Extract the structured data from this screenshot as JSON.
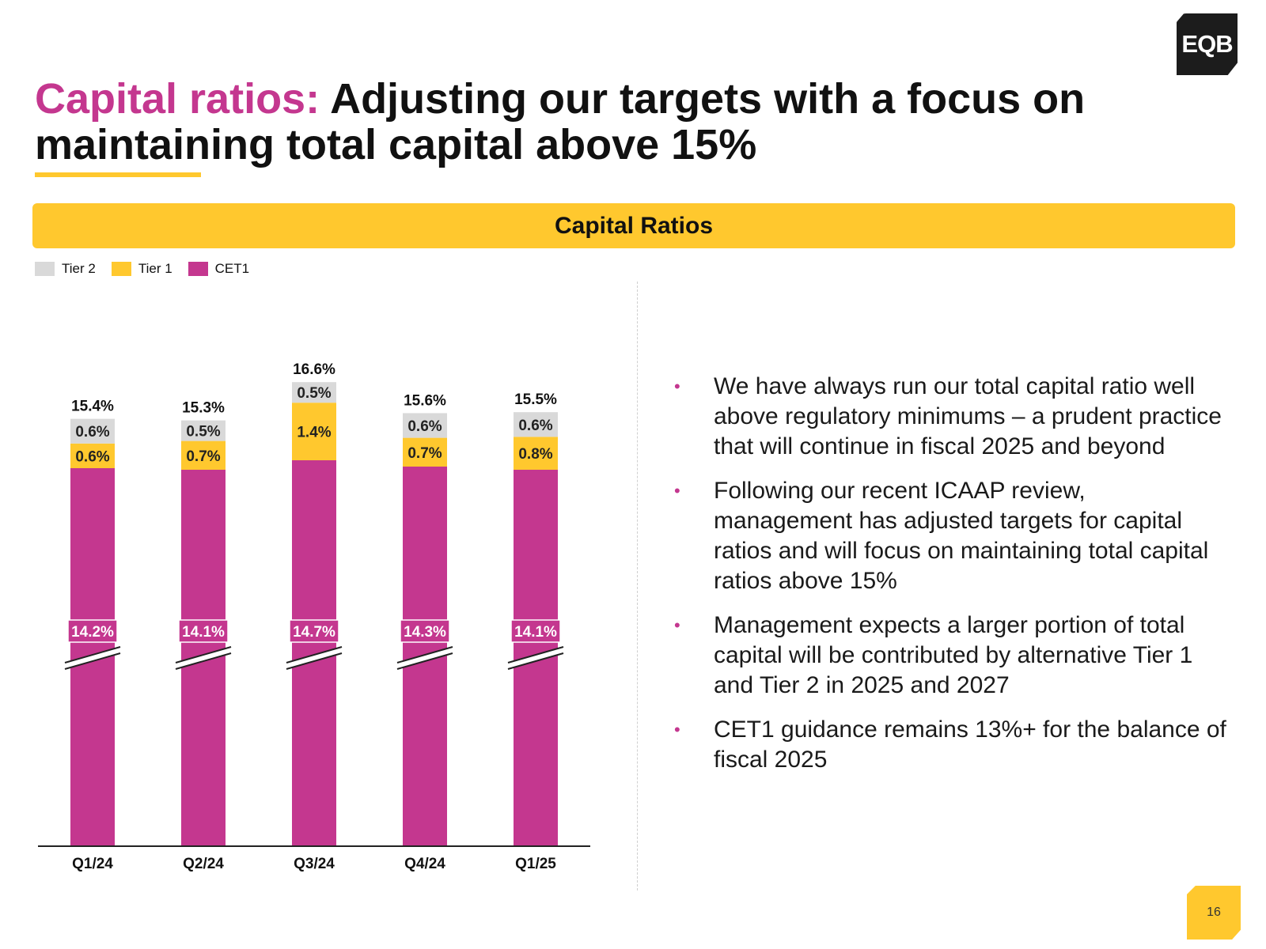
{
  "logo": {
    "text": "EQB"
  },
  "title": {
    "accent": "Capital ratios:",
    "main": "Adjusting our targets with a focus on maintaining total capital above 15%"
  },
  "banner": {
    "label": "Capital Ratios"
  },
  "colors": {
    "cet1": "#c4378f",
    "tier1": "#ffc82e",
    "tier2": "#d9d9d9",
    "accent": "#c4378f"
  },
  "legend": [
    {
      "label": "Tier 2",
      "color": "#d9d9d9"
    },
    {
      "label": "Tier 1",
      "color": "#ffc82e"
    },
    {
      "label": "CET1",
      "color": "#c4378f"
    }
  ],
  "chart_data": {
    "type": "bar",
    "stacked": true,
    "axis_break": true,
    "title": "Capital Ratios",
    "categories": [
      "Q1/24",
      "Q2/24",
      "Q3/24",
      "Q4/24",
      "Q1/25"
    ],
    "series": [
      {
        "name": "CET1",
        "values": [
          14.2,
          14.1,
          14.7,
          14.3,
          14.1
        ],
        "labels": [
          "14.2%",
          "14.1%",
          "14.7%",
          "14.3%",
          "14.1%"
        ]
      },
      {
        "name": "Tier 1",
        "values": [
          0.6,
          0.7,
          1.4,
          0.7,
          0.8
        ],
        "labels": [
          "0.6%",
          "0.7%",
          "1.4%",
          "0.7%",
          "0.8%"
        ]
      },
      {
        "name": "Tier 2",
        "values": [
          0.6,
          0.5,
          0.5,
          0.6,
          0.6
        ],
        "labels": [
          "0.6%",
          "0.5%",
          "0.5%",
          "0.6%",
          "0.6%"
        ]
      }
    ],
    "totals": [
      "15.4%",
      "15.3%",
      "16.6%",
      "15.6%",
      "15.5%"
    ],
    "xlabel": "",
    "ylabel": "",
    "legend_position": "top-left"
  },
  "bullets": [
    "We have always run our total capital ratio well above regulatory minimums – a prudent practice that will continue in fiscal 2025 and beyond",
    "Following our recent ICAAP review, management has adjusted targets for capital ratios and will focus on maintaining total capital ratios above 15%",
    "Management expects a larger portion of total capital will be contributed by alternative Tier 1 and Tier 2 in 2025 and 2027",
    "CET1 guidance remains 13%+ for the balance of fiscal 2025"
  ],
  "page_number": "16"
}
